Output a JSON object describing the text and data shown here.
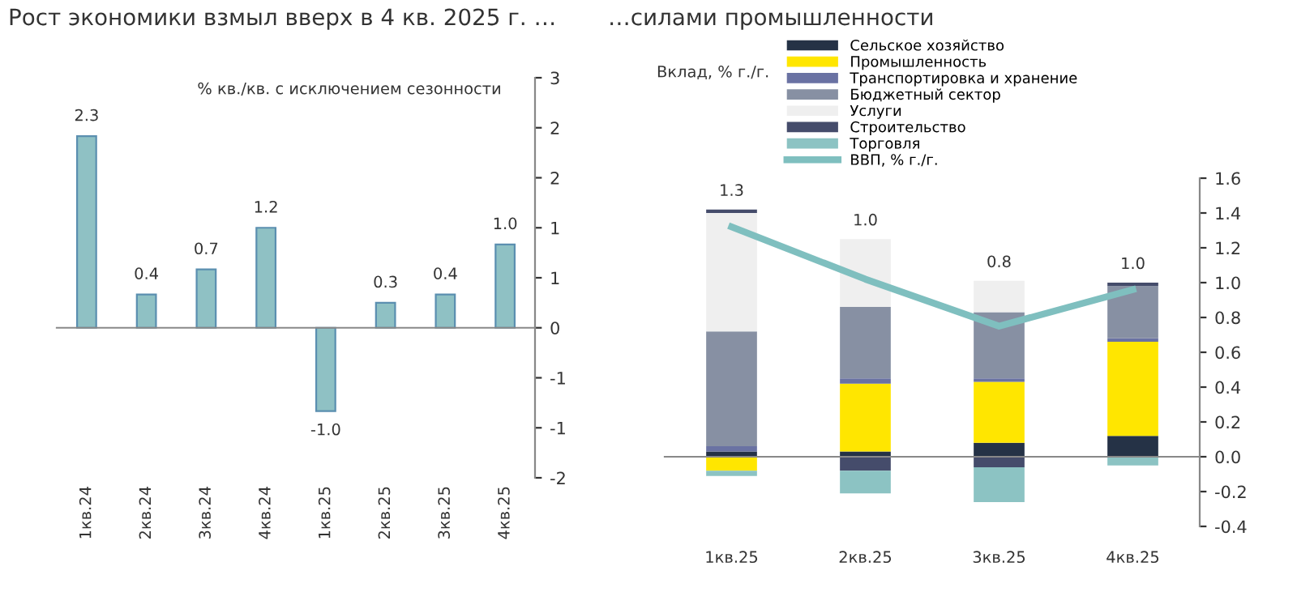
{
  "chart_data": [
    {
      "type": "bar",
      "title": "Рост экономики взмыл вверх в 4 кв. 2025 г. …",
      "ylabel": "% кв./кв. с исключением сезонности",
      "categories": [
        "1кв.24",
        "2кв.24",
        "3кв.24",
        "4кв.24",
        "1кв.25",
        "2кв.25",
        "3кв.25",
        "4кв.25"
      ],
      "values": [
        2.3,
        0.4,
        0.7,
        1.2,
        -1.0,
        0.3,
        0.4,
        1.0
      ],
      "color": "#8fc1c4",
      "value_labels": [
        "2.3",
        "0.4",
        "0.7",
        "1.2",
        "-1.0",
        "0.3",
        "0.4",
        "1.0"
      ],
      "ylim": [
        -1.8,
        3.0
      ],
      "yticks": [
        {
          "value": -1.8,
          "label": "-2"
        },
        {
          "value": -1.2,
          "label": "-1"
        },
        {
          "value": -0.6,
          "label": "-1"
        },
        {
          "value": 0,
          "label": "0"
        },
        {
          "value": 0.6,
          "label": "1"
        },
        {
          "value": 1.2,
          "label": "1"
        },
        {
          "value": 1.8,
          "label": "2"
        },
        {
          "value": 2.4,
          "label": "2"
        },
        {
          "value": 3.0,
          "label": "3"
        }
      ],
      "legend": false
    },
    {
      "type": "bar",
      "title": "…силами промышленности",
      "ylabel": "Вклад, % г./г.",
      "stacked": true,
      "categories": [
        "1кв.25",
        "2кв.25",
        "3кв.25",
        "4кв.25"
      ],
      "series": [
        {
          "name": "Сельское хозяйство",
          "color": "#253246",
          "values": [
            0.03,
            0.03,
            0.08,
            0.12
          ]
        },
        {
          "name": "Промышленность",
          "color": "#ffe600",
          "values": [
            -0.08,
            0.39,
            0.35,
            0.54
          ]
        },
        {
          "name": "Транспортировка и хранение",
          "color": "#6a72a3",
          "values": [
            0.03,
            0.03,
            0.02,
            0.02
          ]
        },
        {
          "name": "Бюджетный сектор",
          "color": "#8790a3",
          "values": [
            0.66,
            0.41,
            0.38,
            0.3
          ]
        },
        {
          "name": "Услуги",
          "color": "#efefef",
          "values": [
            0.68,
            0.39,
            0.18,
            0.0
          ]
        },
        {
          "name": "Строительство",
          "color": "#454c6b",
          "values": [
            0.02,
            -0.08,
            -0.06,
            0.02
          ]
        },
        {
          "name": "Торговля",
          "color": "#8cc3c3",
          "values": [
            -0.03,
            -0.13,
            -0.2,
            -0.05
          ]
        },
        {
          "name": "ВВП, % г./г.",
          "type": "line",
          "color": "#7fbfbf",
          "values": [
            1.32,
            1.02,
            0.75,
            0.96
          ]
        }
      ],
      "annotations": [
        "1.3",
        "1.0",
        "0.8",
        "1.0"
      ],
      "ylim": [
        -0.4,
        1.6
      ],
      "yticks": [
        {
          "value": -0.4,
          "label": "-0.4"
        },
        {
          "value": -0.2,
          "label": "-0.2"
        },
        {
          "value": 0,
          "label": "0.0"
        },
        {
          "value": 0.2,
          "label": "0.2"
        },
        {
          "value": 0.4,
          "label": "0.4"
        },
        {
          "value": 0.6,
          "label": "0.6"
        },
        {
          "value": 0.8,
          "label": "0.8"
        },
        {
          "value": 1.0,
          "label": "1.0"
        },
        {
          "value": 1.2,
          "label": "1.2"
        },
        {
          "value": 1.4,
          "label": "1.4"
        },
        {
          "value": 1.6,
          "label": "1.6"
        }
      ],
      "legend": "top",
      "marker": "none",
      "line_style": "solid"
    }
  ]
}
